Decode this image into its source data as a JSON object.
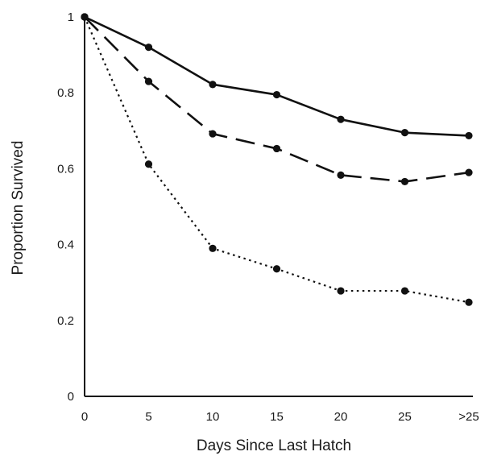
{
  "chart_data": {
    "type": "line",
    "xlabel": "Days Since Last Hatch",
    "ylabel": "Proportion Survived",
    "categories": [
      "0",
      "5",
      "10",
      "15",
      "20",
      "25",
      ">25"
    ],
    "yticks": [
      "0",
      "0.2",
      "0.4",
      "0.6",
      "0.8",
      "1"
    ],
    "ylim": [
      0,
      1
    ],
    "grid": false,
    "series": [
      {
        "style": "solid",
        "values": [
          1.0,
          0.92,
          0.822,
          0.795,
          0.73,
          0.695,
          0.687
        ]
      },
      {
        "style": "dashed",
        "values": [
          1.0,
          0.83,
          0.692,
          0.653,
          0.583,
          0.566,
          0.59
        ]
      },
      {
        "style": "dotted",
        "values": [
          1.0,
          0.612,
          0.39,
          0.336,
          0.278,
          0.278,
          0.248
        ]
      }
    ]
  }
}
